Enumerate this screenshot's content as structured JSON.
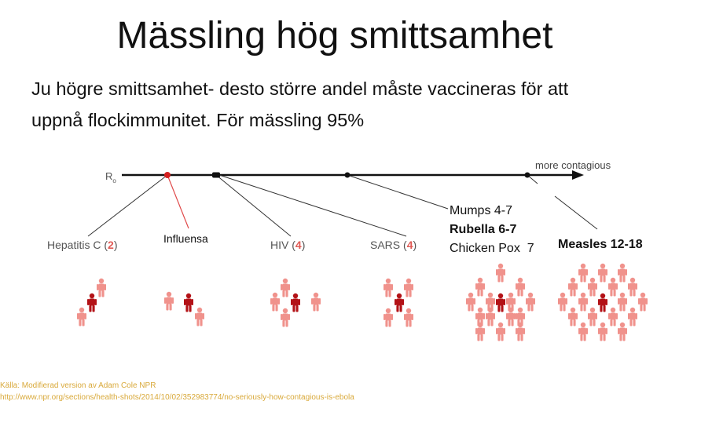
{
  "title": "Mässling hög smittsamhet",
  "subtitle": {
    "line1": "Ju högre smittsamhet- desto större andel måste vaccineras för att",
    "line2": "uppnå flockimmunitet. För mässling 95%"
  },
  "axis": {
    "symbol": "R",
    "subscript": "o",
    "end_label": "more contagious"
  },
  "colors": {
    "infected": "#b31217",
    "contact": "#f0928c",
    "gray_label": "#555555",
    "red_number": "#e05a55",
    "influenza_line": "#e04a4a",
    "source_text": "#d9a93a"
  },
  "diseases": [
    {
      "key": "hepatitis",
      "name": "Hepatitis C (",
      "number": "2",
      "close": ")",
      "contacts": 2
    },
    {
      "key": "influensa",
      "name": "Influensa",
      "contacts": 2
    },
    {
      "key": "hiv",
      "name": "HIV (",
      "number": "4",
      "close": ")",
      "contacts": 4
    },
    {
      "key": "sars",
      "name": "SARS (",
      "number": "4",
      "close": ")",
      "contacts": 4
    },
    {
      "key": "mumps",
      "lines": [
        "Mumps 4-7",
        "Rubella 6-7",
        "Chicken Pox  7"
      ],
      "contacts": 7
    },
    {
      "key": "measles",
      "name": "Measles 12-18",
      "contacts": 18
    }
  ],
  "source": {
    "line1": "Källa: Modifierad version av Adam Cole NPR",
    "line2": "http://www.npr.org/sections/health-shots/2014/10/02/352983774/no-seriously-how-contagious-is-ebola"
  }
}
